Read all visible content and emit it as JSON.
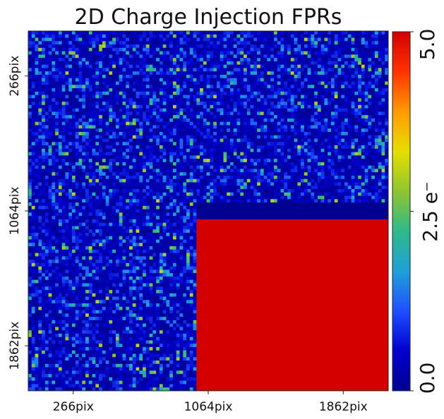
{
  "chart_data": {
    "type": "heatmap",
    "title": "2D Charge Injection FPRs",
    "x_ticks": [
      {
        "label": "266pix",
        "value": 266
      },
      {
        "label": "1064pix",
        "value": 1064
      },
      {
        "label": "1862pix",
        "value": 1862
      }
    ],
    "y_ticks": [
      {
        "label": "266pix",
        "value": 266
      },
      {
        "label": "1064pix",
        "value": 1064
      },
      {
        "label": "1862pix",
        "value": 1862
      }
    ],
    "axis_range": [
      0,
      2128
    ],
    "grid": false,
    "colorbar": {
      "label": "2.5 e⁻",
      "min": 0.0,
      "max": 5.0,
      "ticks": [
        {
          "label": "0.0",
          "value": 0.0
        },
        {
          "label": "2.5",
          "value": 2.5
        },
        {
          "label": "5.0",
          "value": 5.0
        }
      ],
      "colormap": [
        "#00008f",
        "#0000d0",
        "#1f4fff",
        "#1fa0d8",
        "#2fb98a",
        "#8fc530",
        "#e6e000",
        "#ff9a00",
        "#ff3300",
        "#d40000"
      ]
    },
    "regions": [
      {
        "name": "background noise",
        "description_value_range": [
          0.0,
          2.5
        ],
        "typical_value": 0.5
      },
      {
        "name": "charge injection block",
        "x_range": [
          1000,
          2128
        ],
        "y_range": [
          1110,
          2128
        ],
        "value": 5.0
      },
      {
        "name": "empty band",
        "x_range": [
          1000,
          2128
        ],
        "y_range": [
          1020,
          1110
        ],
        "value": 0.0
      }
    ],
    "grid_cells": [
      107,
      107
    ]
  }
}
